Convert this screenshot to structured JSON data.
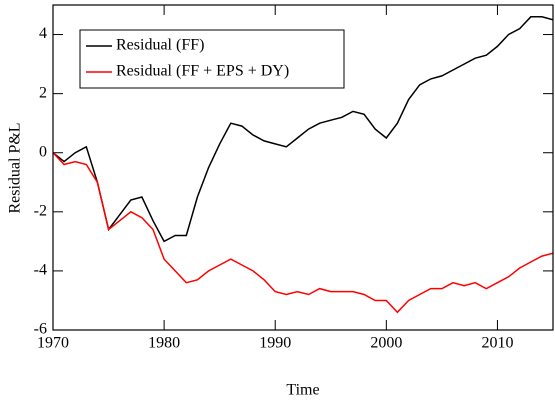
{
  "chart_data": {
    "type": "line",
    "xlabel": "Time",
    "ylabel": "Residual P&L",
    "x": [
      1970,
      1971,
      1972,
      1973,
      1974,
      1975,
      1976,
      1977,
      1978,
      1979,
      1980,
      1981,
      1982,
      1983,
      1984,
      1985,
      1986,
      1987,
      1988,
      1989,
      1990,
      1991,
      1992,
      1993,
      1994,
      1995,
      1996,
      1997,
      1998,
      1999,
      2000,
      2001,
      2002,
      2003,
      2004,
      2005,
      2006,
      2007,
      2008,
      2009,
      2010,
      2011,
      2012,
      2013,
      2014,
      2015
    ],
    "series": [
      {
        "name": "Residual (FF)",
        "color": "#000000",
        "values": [
          0,
          -0.3,
          0,
          0.2,
          -1,
          -2.6,
          -2.1,
          -1.6,
          -1.5,
          -2.3,
          -3.0,
          -2.8,
          -2.8,
          -1.5,
          -0.5,
          0.3,
          1.0,
          0.9,
          0.6,
          0.4,
          0.3,
          0.2,
          0.5,
          0.8,
          1.0,
          1.1,
          1.2,
          1.4,
          1.3,
          0.8,
          0.5,
          1.0,
          1.8,
          2.3,
          2.5,
          2.6,
          2.8,
          3.0,
          3.2,
          3.3,
          3.6,
          4.0,
          4.2,
          4.6,
          4.6,
          4.5
        ]
      },
      {
        "name": "Residual (FF + EPS + DY)",
        "color": "#ff0000",
        "values": [
          0,
          -0.4,
          -0.3,
          -0.4,
          -1.0,
          -2.6,
          -2.3,
          -2.0,
          -2.2,
          -2.6,
          -3.6,
          -4.0,
          -4.4,
          -4.3,
          -4.0,
          -3.8,
          -3.6,
          -3.8,
          -4.0,
          -4.3,
          -4.7,
          -4.8,
          -4.7,
          -4.8,
          -4.6,
          -4.7,
          -4.7,
          -4.7,
          -4.8,
          -5.0,
          -5.0,
          -5.4,
          -5.0,
          -4.8,
          -4.6,
          -4.6,
          -4.4,
          -4.5,
          -4.4,
          -4.6,
          -4.4,
          -4.2,
          -3.9,
          -3.7,
          -3.5,
          -3.4
        ]
      }
    ],
    "xlim": [
      1970,
      2015
    ],
    "xticks": [
      1970,
      1980,
      1990,
      2000,
      2010
    ],
    "ylim": [
      -6,
      5
    ],
    "yticks": [
      -6,
      -4,
      -2,
      0,
      2,
      4
    ],
    "legend": "upper left",
    "grid": false
  }
}
